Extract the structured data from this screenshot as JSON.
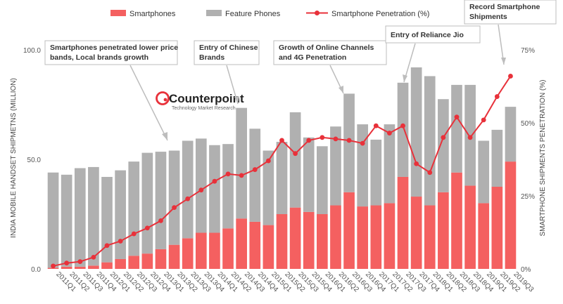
{
  "legend": {
    "smartphones": "Smartphones",
    "feature_phones": "Feature Phones",
    "penetration": "Smartphone Penetration (%)"
  },
  "logo": {
    "name": "Counterpoint",
    "tagline": "Technology Market Research"
  },
  "colors": {
    "smartphones": "#f46060",
    "feature_phones": "#b0b0b0",
    "penetration": "#e8313a",
    "annotation_border": "#bdbdbd"
  },
  "annotations": [
    {
      "id": "price-bands",
      "lines": [
        "Smartphones penetrated lower price",
        "bands, Local brands growth"
      ]
    },
    {
      "id": "chinese",
      "lines": [
        "Entry of Chinese",
        "Brands"
      ]
    },
    {
      "id": "online",
      "lines": [
        "Growth of Online Channels",
        "and 4G Penetration"
      ]
    },
    {
      "id": "jio",
      "lines": [
        "Entry of Reliance Jio"
      ]
    },
    {
      "id": "record",
      "lines": [
        "Record Smartphone",
        "Shipments"
      ]
    }
  ],
  "chart_data": {
    "type": "bar",
    "stacked": true,
    "title": "",
    "ylabel": "INDIA MOBILE HANDSET SHIPMETNS (MILLION)",
    "y2label": "SMARTPHONE SHIPMENTS PENETRATION (%)",
    "ylim": [
      0,
      100
    ],
    "y2lim": [
      0,
      75
    ],
    "yticks": [
      "0.0",
      "50.0",
      "100.0"
    ],
    "y2ticks": [
      "0%",
      "25%",
      "50%",
      "75%"
    ],
    "grid": false,
    "legend_position": "top",
    "categories": [
      "2011Q1",
      "2011Q2",
      "2011Q3",
      "2011Q4",
      "2012Q1",
      "2012Q2",
      "2012Q3",
      "2012Q4",
      "2013Q1",
      "2013Q2",
      "2013Q3",
      "2013Q4",
      "2014Q1",
      "2014Q2",
      "2014Q3",
      "2014Q4",
      "2015Q1",
      "2015Q2",
      "2015Q3",
      "2015Q4",
      "2016Q1",
      "2016Q2",
      "2016Q3",
      "2016Q4",
      "2017Q1",
      "2017Q2",
      "2017Q3",
      "2017Q4",
      "2018Q1",
      "2018Q2",
      "2018Q3",
      "2018Q4",
      "2019Q1",
      "2019Q2",
      "2019Q3"
    ],
    "series": [
      {
        "name": "Smartphones",
        "values": [
          0.5,
          1,
          1,
          1.5,
          3,
          4.5,
          6,
          7,
          9,
          11,
          14,
          16.5,
          16.5,
          18.5,
          23,
          21.5,
          20,
          25,
          28,
          26,
          25,
          29,
          35,
          28.5,
          29,
          30,
          42,
          33,
          29,
          35,
          44,
          38,
          30,
          37.5,
          49
        ]
      },
      {
        "name": "Feature Phones",
        "values": [
          43.5,
          42,
          45,
          45,
          39,
          40.5,
          43,
          46,
          44.5,
          43,
          44.5,
          43,
          40,
          38.5,
          50.5,
          42.5,
          34,
          33,
          43.5,
          34,
          31,
          36,
          45,
          37.5,
          30,
          36,
          43,
          59,
          59,
          42.5,
          40,
          46,
          28.5,
          26,
          25
        ]
      },
      {
        "name": "Smartphone Penetration (%)",
        "axis": "secondary",
        "type": "line",
        "values": [
          1,
          2,
          2.5,
          4,
          8,
          9.5,
          12,
          14,
          16.5,
          21,
          24,
          27,
          30,
          32.5,
          32,
          34,
          37,
          44,
          39.5,
          44,
          45,
          44.5,
          44,
          43,
          49,
          46.5,
          49,
          36,
          33,
          45,
          52,
          45,
          51,
          59,
          66
        ]
      }
    ]
  }
}
